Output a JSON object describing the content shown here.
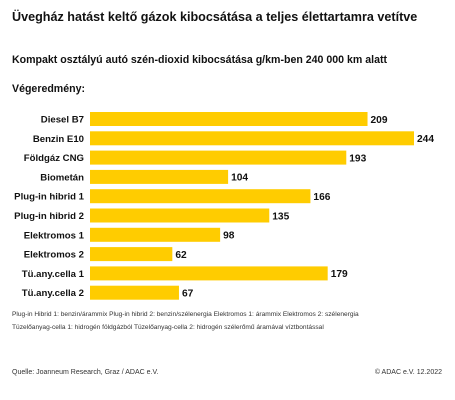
{
  "chart_data": {
    "type": "bar",
    "orientation": "horizontal",
    "title": "Üvegház hatást keltő gázok kibocsátása a teljes élettartamra vetítve",
    "subtitle": "Kompakt osztályú autó szén-dioxid kibocsátása g/km-ben 240 000 km alatt",
    "result_label": "Végeredmény:",
    "categories": [
      "Diesel B7",
      "Benzin E10",
      "Földgáz CNG",
      "Biometán",
      "Plug-in hibrid 1",
      "Plug-in hibrid 2",
      "Elektromos 1",
      "Elektromos 2",
      "Tü.any.cella 1",
      "Tü.any.cella 2"
    ],
    "values": [
      209,
      244,
      193,
      104,
      166,
      135,
      98,
      62,
      179,
      67
    ],
    "bar_color": "#FFCC00",
    "xlim": [
      0,
      244
    ],
    "grid": false,
    "legend": "none"
  },
  "footnotes": {
    "line1": "Plug-in Hibrid 1: benzin/árammix   Plug-in hibrid 2: benzin/szélenergia Elektromos 1: árammix   Elektromos 2: szélenergia",
    "line2": "Tüzelőanyag-cella 1: hidrogén földgázból   Tüzelőanyag-cella 2: hidrogén szélerőmű áramával víztbontással"
  },
  "source": "Quelle: Joanneum Research, Graz / ADAC e.V.",
  "copyright": "© ADAC e.V. 12.2022"
}
